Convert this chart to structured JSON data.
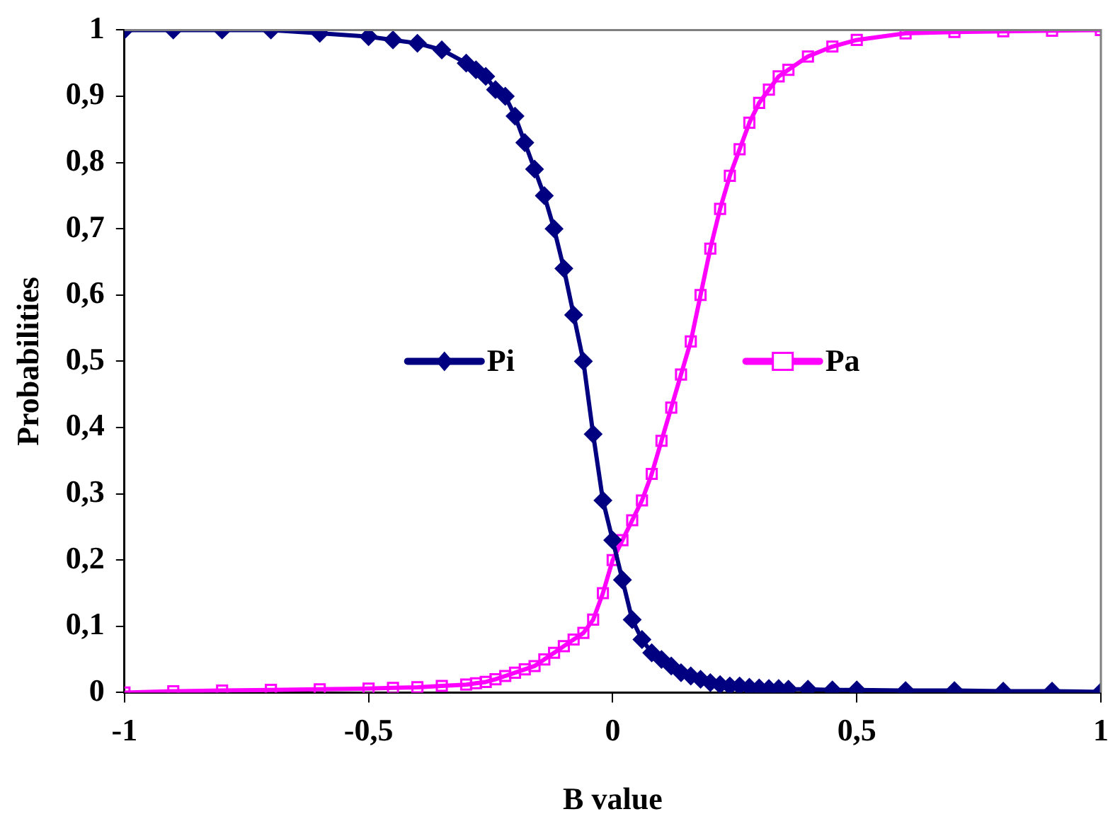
{
  "chart_data": {
    "type": "line",
    "xlabel": "B value",
    "ylabel": "Probabilities",
    "xlim": [
      -1,
      1
    ],
    "xticks": [
      -1,
      {
        "value": -0.5,
        "label": "-0,5"
      },
      0,
      {
        "value": 0.5,
        "label": "0,5"
      },
      1
    ],
    "ylim": [
      0,
      1
    ],
    "yticks": [
      0,
      {
        "value": 0.1,
        "label": "0,1"
      },
      {
        "value": 0.2,
        "label": "0,2"
      },
      {
        "value": 0.3,
        "label": "0,3"
      },
      {
        "value": 0.4,
        "label": "0,4"
      },
      {
        "value": 0.5,
        "label": "0,5"
      },
      {
        "value": 0.6,
        "label": "0,6"
      },
      {
        "value": 0.7,
        "label": "0,7"
      },
      {
        "value": 0.8,
        "label": "0,8"
      },
      {
        "value": 0.9,
        "label": "0,9"
      },
      1
    ],
    "grid": false,
    "legend": "center",
    "line_style": "solid",
    "x": [
      -1,
      -0.9,
      -0.8,
      -0.7,
      -0.6,
      -0.5,
      -0.45,
      -0.4,
      -0.35,
      -0.3,
      -0.28,
      -0.26,
      -0.24,
      -0.22,
      -0.2,
      -0.18,
      -0.16,
      -0.14,
      -0.12,
      -0.1,
      -0.08,
      -0.06,
      -0.04,
      -0.02,
      0,
      0.02,
      0.04,
      0.06,
      0.08,
      0.1,
      0.12,
      0.14,
      0.16,
      0.18,
      0.2,
      0.22,
      0.24,
      0.26,
      0.28,
      0.3,
      0.32,
      0.34,
      0.36,
      0.4,
      0.45,
      0.5,
      0.6,
      0.7,
      0.8,
      0.9,
      1
    ],
    "series": [
      {
        "name": "Pi",
        "color": "#000080",
        "marker": "diamond",
        "values": [
          1,
          1,
          1,
          1,
          0.995,
          0.99,
          0.985,
          0.98,
          0.97,
          0.95,
          0.94,
          0.93,
          0.91,
          0.9,
          0.87,
          0.83,
          0.79,
          0.75,
          0.7,
          0.64,
          0.57,
          0.5,
          0.39,
          0.29,
          0.23,
          0.17,
          0.11,
          0.08,
          0.06,
          0.05,
          0.04,
          0.03,
          0.025,
          0.02,
          0.015,
          0.012,
          0.01,
          0.01,
          0.008,
          0.007,
          0.006,
          0.006,
          0.005,
          0.005,
          0.004,
          0.004,
          0.003,
          0.003,
          0.002,
          0.002,
          0.001
        ]
      },
      {
        "name": "Pa",
        "color": "#ff00ff",
        "marker": "square",
        "values": [
          0,
          0.002,
          0.003,
          0.004,
          0.005,
          0.006,
          0.007,
          0.008,
          0.01,
          0.012,
          0.014,
          0.016,
          0.02,
          0.025,
          0.03,
          0.035,
          0.04,
          0.05,
          0.06,
          0.07,
          0.08,
          0.09,
          0.11,
          0.15,
          0.2,
          0.23,
          0.26,
          0.29,
          0.33,
          0.38,
          0.43,
          0.48,
          0.53,
          0.6,
          0.67,
          0.73,
          0.78,
          0.82,
          0.86,
          0.89,
          0.91,
          0.93,
          0.94,
          0.96,
          0.975,
          0.985,
          0.995,
          0.997,
          0.998,
          0.999,
          1
        ]
      }
    ]
  }
}
